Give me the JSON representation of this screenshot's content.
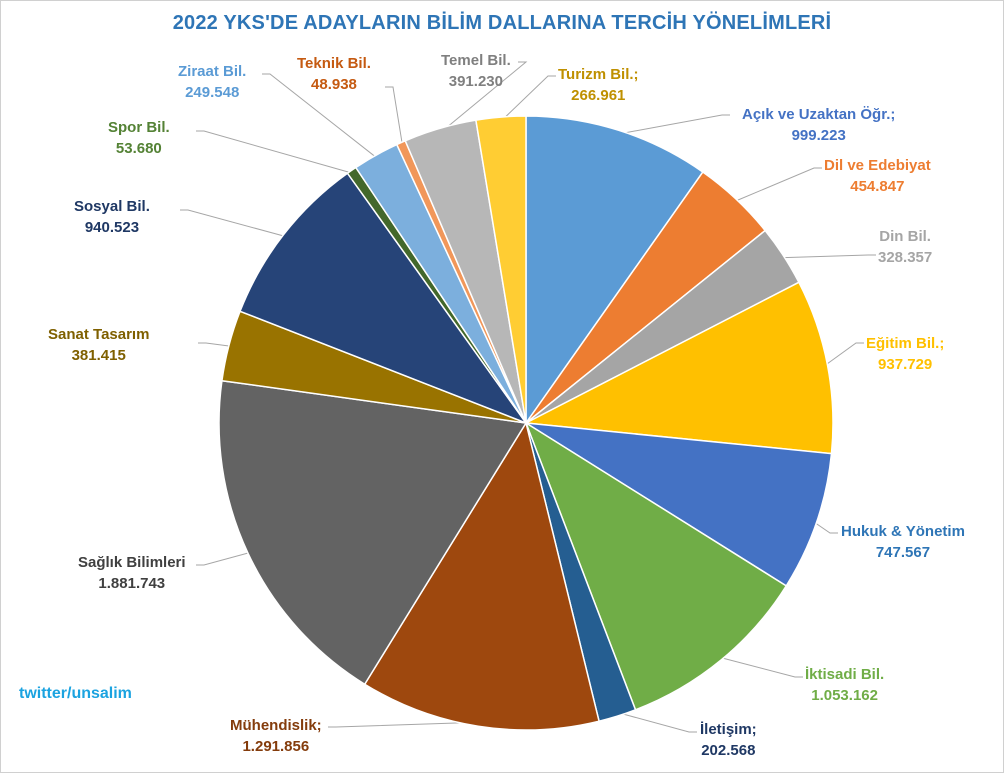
{
  "chart_data": {
    "type": "pie",
    "title": "2022 YKS'DE ADAYLARIN BİLİM DALLARINA TERCİH YÖNELİMLERİ",
    "slices": [
      {
        "name": "Açık ve Uzaktan Öğr.;",
        "value": 999223,
        "display": "999.223",
        "color": "#5b9bd5",
        "label_color": "#4472c4"
      },
      {
        "name": "Dil ve Edebiyat",
        "value": 454847,
        "display": "454.847",
        "color": "#ed7d31",
        "label_color": "#ed7d31"
      },
      {
        "name": "Din Bil.",
        "value": 328357,
        "display": "328.357",
        "color": "#a5a5a5",
        "label_color": "#a5a5a5"
      },
      {
        "name": "Eğitim Bil.;",
        "value": 937729,
        "display": "937.729",
        "color": "#ffc000",
        "label_color": "#ffc000"
      },
      {
        "name": "Hukuk & Yönetim",
        "value": 747567,
        "display": "747.567",
        "color": "#4472c4",
        "label_color": "#2e75b6"
      },
      {
        "name": "İktisadi Bil.",
        "value": 1053162,
        "display": "1.053.162",
        "color": "#70ad47",
        "label_color": "#70ad47"
      },
      {
        "name": "İletişim;",
        "value": 202568,
        "display": "202.568",
        "color": "#255e91",
        "label_color": "#1f3864"
      },
      {
        "name": "Mühendislik;",
        "value": 1291856,
        "display": "1.291.856",
        "color": "#9e480e",
        "label_color": "#843c0c"
      },
      {
        "name": "Sağlık Bilimleri",
        "value": 1881743,
        "display": "1.881.743",
        "color": "#636363",
        "label_color": "#404040"
      },
      {
        "name": "Sanat Tasarım",
        "value": 381415,
        "display": "381.415",
        "color": "#997300",
        "label_color": "#7f6000"
      },
      {
        "name": "Sosyal Bil.",
        "value": 940523,
        "display": "940.523",
        "color": "#264478",
        "label_color": "#1f3864"
      },
      {
        "name": "Spor Bil.",
        "value": 53680,
        "display": "53.680",
        "color": "#43682b",
        "label_color": "#548235"
      },
      {
        "name": "Ziraat Bil.",
        "value": 249548,
        "display": "249.548",
        "color": "#7cafdd",
        "label_color": "#5b9bd5"
      },
      {
        "name": "Teknik Bil.",
        "value": 48938,
        "display": "48.938",
        "color": "#f1975a",
        "label_color": "#c55a11"
      },
      {
        "name": "Temel Bil.",
        "value": 391230,
        "display": "391.230",
        "color": "#b7b7b7",
        "label_color": "#7f7f7f"
      },
      {
        "name": "Turizm Bil.;",
        "value": 266961,
        "display": "266.961",
        "color": "#ffcd33",
        "label_color": "#bf9000"
      }
    ]
  },
  "credit": "twitter/unsalim"
}
